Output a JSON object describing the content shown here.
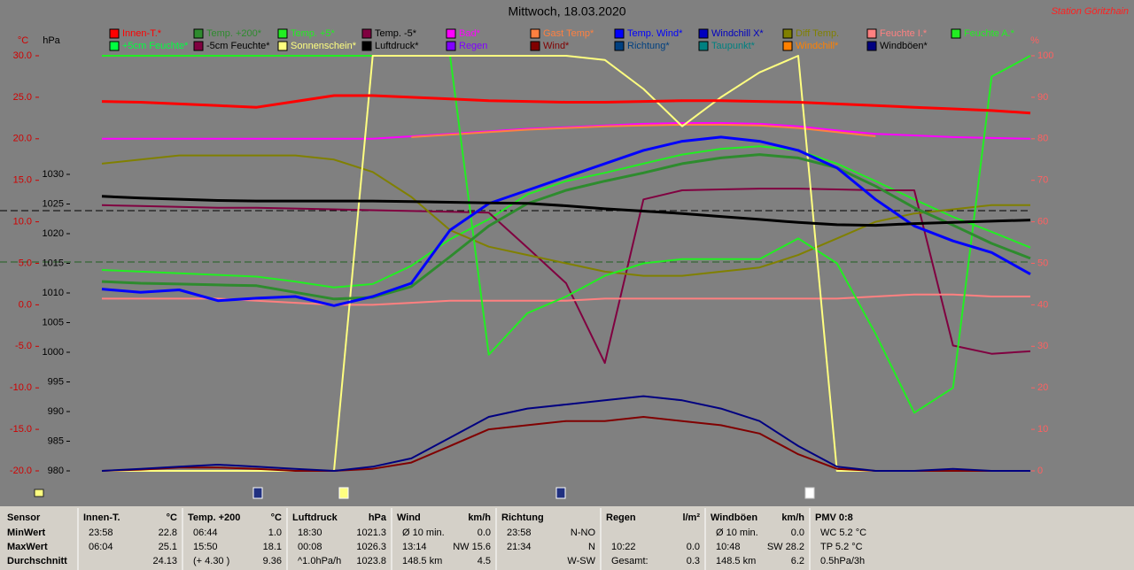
{
  "header": {
    "station": "Station Göritzhain"
  },
  "chart_data": {
    "type": "line",
    "title": "Mittwoch, 18.03.2020",
    "y_label": "°C",
    "y3_label": "hPa",
    "y2_label": "%",
    "x": [
      0,
      1,
      2,
      3,
      4,
      5,
      6,
      7,
      8,
      9,
      10,
      11,
      12,
      13,
      14,
      15,
      16,
      17,
      18,
      19,
      20,
      21,
      22,
      23,
      24
    ],
    "xlim": [
      0,
      24
    ],
    "ylim": [
      -20,
      30
    ],
    "yticks": [
      {
        "value": 30,
        "label": "30.0"
      },
      {
        "value": 25,
        "label": "25.0"
      },
      {
        "value": 20,
        "label": "20.0"
      },
      {
        "value": 15,
        "label": "15.0"
      },
      {
        "value": 10,
        "label": "10.0"
      },
      {
        "value": 5,
        "label": "5.0"
      },
      {
        "value": 0,
        "label": "0.0"
      },
      {
        "value": -5,
        "label": "-5.0"
      },
      {
        "value": -10,
        "label": "-10.0"
      },
      {
        "value": -15,
        "label": "-15.0"
      },
      {
        "value": -20,
        "label": "-20.0"
      }
    ],
    "y3lim": [
      980,
      1050
    ],
    "y3ticks": [
      1030,
      1025,
      1020,
      1015,
      1010,
      1005,
      1000,
      995,
      990,
      985,
      980
    ],
    "y2lim": [
      0,
      100
    ],
    "y2ticks": [
      100,
      90,
      80,
      70,
      60,
      50,
      40,
      30,
      20,
      10,
      0
    ],
    "series": [
      {
        "name": "Innen-T.*",
        "color": "#ff0000",
        "axis": "y",
        "values": [
          24.5,
          24.4,
          24.2,
          24.0,
          23.8,
          24.5,
          25.2,
          25.2,
          25.0,
          24.8,
          24.6,
          24.5,
          24.4,
          24.4,
          24.5,
          24.6,
          24.6,
          24.5,
          24.4,
          24.2,
          24.0,
          23.8,
          23.6,
          23.4,
          23.1
        ]
      },
      {
        "name": "Temp. +200*",
        "color": "#2e8b2e",
        "axis": "y",
        "values": [
          2.8,
          2.6,
          2.5,
          2.4,
          2.3,
          1.5,
          0.7,
          0.9,
          2.2,
          5.8,
          9.5,
          12.2,
          13.8,
          14.9,
          15.9,
          17.0,
          17.7,
          18.1,
          17.7,
          16.5,
          14.3,
          11.7,
          9.6,
          7.4,
          5.6
        ]
      },
      {
        "name": "Temp. +5*",
        "color": "#22ee22",
        "axis": "y",
        "values": [
          4.2,
          4.0,
          3.8,
          3.6,
          3.4,
          2.8,
          2.1,
          2.5,
          4.7,
          7.9,
          10.3,
          13.3,
          14.9,
          15.9,
          17.0,
          18.1,
          18.8,
          19.1,
          18.6,
          17.0,
          14.9,
          12.7,
          10.6,
          8.8,
          6.9
        ]
      },
      {
        "name": "Temp. -5*",
        "color": "#800040",
        "axis": "y",
        "values": [
          12.0,
          11.9,
          11.8,
          11.7,
          11.7,
          11.6,
          11.5,
          11.4,
          11.3,
          11.2,
          11.1,
          6.9,
          2.6,
          -7.0,
          12.7,
          13.8,
          13.9,
          14.0,
          14.0,
          13.9,
          13.8,
          13.8,
          -4.9,
          -5.9,
          -5.6
        ]
      },
      {
        "name": "Bad*",
        "color": "#ff00ff",
        "axis": "y",
        "values": [
          20.0,
          20.0,
          20.0,
          20.0,
          20.0,
          20.0,
          20.0,
          20.0,
          20.3,
          20.6,
          20.9,
          21.2,
          21.4,
          21.6,
          21.8,
          21.9,
          21.9,
          21.8,
          21.5,
          21.0,
          20.6,
          20.4,
          20.2,
          20.1,
          20.0
        ]
      },
      {
        "name": "Gast Temp*",
        "color": "#ff8040",
        "axis": "y",
        "values": [
          null,
          null,
          null,
          null,
          null,
          null,
          null,
          null,
          20.2,
          20.5,
          20.8,
          21.1,
          21.3,
          21.5,
          21.6,
          21.7,
          21.7,
          21.6,
          21.3,
          20.8,
          20.3,
          null,
          null,
          null,
          null
        ]
      },
      {
        "name": "Temp. Wind*",
        "color": "#0000ff",
        "axis": "y",
        "values": [
          1.9,
          1.5,
          1.8,
          0.5,
          0.8,
          1.0,
          -0.1,
          1.0,
          2.6,
          9.0,
          12.2,
          13.8,
          15.4,
          17.0,
          18.6,
          19.7,
          20.2,
          19.7,
          18.6,
          16.5,
          12.7,
          9.5,
          7.7,
          6.3,
          3.7
        ]
      },
      {
        "name": "Windchill X*",
        "color": "#0000c0",
        "axis": "y",
        "values": [
          null,
          null,
          null,
          null,
          null,
          null,
          null,
          null,
          null,
          null,
          null,
          null,
          null,
          null,
          null,
          null,
          null,
          null,
          null,
          null,
          null,
          null,
          null,
          null,
          null
        ]
      },
      {
        "name": "Diff Temp.",
        "color": "#808000",
        "axis": "y",
        "values": [
          17.0,
          17.5,
          18.0,
          18.0,
          18.0,
          18.0,
          17.5,
          16.0,
          13.0,
          9.0,
          7.0,
          6.0,
          5.0,
          4.0,
          3.5,
          3.5,
          4.0,
          4.5,
          6.0,
          8.0,
          10.0,
          11.0,
          11.5,
          12.0,
          12.0
        ]
      },
      {
        "name": "Feuchte I.*",
        "color": "#ff8080",
        "axis": "y2",
        "values": [
          41.5,
          41.5,
          41.5,
          41.5,
          41,
          40.5,
          40,
          40,
          40.5,
          41,
          41,
          41,
          41,
          41.5,
          41.5,
          41.5,
          41.5,
          41.5,
          41.5,
          41.5,
          42,
          42.5,
          42.5,
          42,
          42
        ]
      },
      {
        "name": "Feuchte A.*",
        "color": "#22ee22",
        "axis": "y2",
        "values": [
          100,
          100,
          100,
          100,
          100,
          100,
          100,
          100,
          100,
          100,
          28,
          38,
          42,
          47,
          50,
          51,
          51,
          51,
          56,
          50,
          33,
          14,
          20,
          95,
          100
        ]
      },
      {
        "name": "+5cm Feuchte*",
        "color": "#00ff40",
        "axis": "y2",
        "values": [
          null,
          null,
          null,
          null,
          null,
          null,
          null,
          null,
          null,
          null,
          null,
          null,
          null,
          null,
          null,
          null,
          null,
          null,
          null,
          null,
          null,
          null,
          null,
          null,
          null
        ]
      },
      {
        "name": "-5cm Feuchte*",
        "color": "#800040",
        "axis": "y2",
        "values": [
          null,
          null,
          null,
          null,
          null,
          null,
          null,
          null,
          null,
          null,
          null,
          null,
          null,
          null,
          null,
          null,
          null,
          null,
          null,
          null,
          null,
          null,
          null,
          null,
          null
        ]
      },
      {
        "name": "Sonnenschein*",
        "color": "#ffff80",
        "axis": "y2",
        "values": [
          0,
          0,
          0,
          0,
          0,
          0,
          0,
          100,
          100,
          100,
          100,
          100,
          100,
          99,
          92,
          83,
          90,
          96,
          100,
          0,
          0,
          0,
          0,
          0,
          0
        ]
      },
      {
        "name": "Luftdruck*",
        "color": "#000000",
        "axis": "y3",
        "values": [
          1026.3,
          1026.0,
          1025.8,
          1025.6,
          1025.5,
          1025.5,
          1025.5,
          1025.5,
          1025.4,
          1025.3,
          1025.2,
          1025.1,
          1024.7,
          1024.2,
          1023.8,
          1023.4,
          1022.9,
          1022.4,
          1021.9,
          1021.5,
          1021.4,
          1021.7,
          1021.9,
          1022.1,
          1022.3
        ]
      },
      {
        "name": "Regen",
        "color": "#8000ff",
        "axis": "y2",
        "values": [
          null,
          null,
          null,
          null,
          null,
          null,
          null,
          null,
          null,
          null,
          null,
          null,
          null,
          null,
          null,
          null,
          null,
          null,
          null,
          null,
          null,
          null,
          null,
          null,
          null
        ]
      },
      {
        "name": "Wind*",
        "color": "#800000",
        "axis": "y2",
        "values": [
          0,
          0.3,
          0.8,
          0.8,
          0.5,
          0,
          0,
          0.5,
          2,
          6,
          10,
          11,
          12,
          12,
          13,
          12,
          11,
          9,
          4,
          0.5,
          0,
          0,
          0,
          0,
          0
        ]
      },
      {
        "name": "Richtung*",
        "color": "#004080",
        "axis": "y2",
        "values": [
          null,
          null,
          null,
          null,
          null,
          null,
          null,
          null,
          null,
          null,
          null,
          null,
          null,
          null,
          null,
          null,
          null,
          null,
          null,
          null,
          null,
          null,
          null,
          null,
          null
        ]
      },
      {
        "name": "Taupunkt*",
        "color": "#008080",
        "axis": "y",
        "values": [
          null,
          null,
          null,
          null,
          null,
          null,
          null,
          null,
          null,
          null,
          null,
          null,
          null,
          null,
          null,
          null,
          null,
          null,
          null,
          null,
          null,
          null,
          null,
          null,
          null
        ]
      },
      {
        "name": "Windchill*",
        "color": "#ff8000",
        "axis": "y",
        "values": [
          null,
          null,
          null,
          null,
          null,
          null,
          null,
          null,
          null,
          null,
          null,
          null,
          null,
          null,
          null,
          null,
          null,
          null,
          null,
          null,
          null,
          null,
          null,
          null,
          null
        ]
      },
      {
        "name": "Windböen*",
        "color": "#000080",
        "axis": "y2",
        "values": [
          0,
          0.5,
          1,
          1.5,
          1,
          0.5,
          0,
          1,
          3,
          8,
          13,
          15,
          16,
          17,
          18,
          17,
          15,
          12,
          6,
          1,
          0,
          0,
          0.5,
          0,
          0
        ]
      }
    ]
  },
  "table": {
    "row_header": "Sensor",
    "row_labels": [
      "MinWert",
      "MaxWert",
      "Durchschnitt"
    ],
    "columns": [
      {
        "header": "Innen-T.",
        "unit": "°C",
        "cells": [
          [
            "23:58",
            "22.8"
          ],
          [
            "06:04",
            "25.1"
          ],
          [
            null,
            "24.13"
          ]
        ]
      },
      {
        "header": "Temp. +200",
        "unit": "°C",
        "cells": [
          [
            "06:44",
            "1.0"
          ],
          [
            "15:50",
            "18.1"
          ],
          [
            "(+ 4.30 )",
            "9.36"
          ]
        ]
      },
      {
        "header": "Luftdruck",
        "unit": "hPa",
        "cells": [
          [
            "18:30",
            "1021.3"
          ],
          [
            "00:08",
            "1026.3"
          ],
          [
            "^1.0hPa/h",
            "1023.8"
          ]
        ]
      },
      {
        "header": "Wind",
        "unit": "km/h",
        "cells": [
          [
            "Ø 10 min.",
            "0.0"
          ],
          [
            "13:14",
            "NW 15.6"
          ],
          [
            "148.5 km",
            "4.5"
          ]
        ]
      },
      {
        "header": "Richtung",
        "unit": null,
        "cells": [
          [
            "23:58",
            "N-NO"
          ],
          [
            "21:34",
            "N"
          ],
          [
            null,
            "W-SW"
          ]
        ]
      },
      {
        "header": "Regen",
        "unit": "l/m²",
        "cells": [
          [
            null,
            null
          ],
          [
            "10:22",
            "0.0"
          ],
          [
            "Gesamt:",
            "0.3"
          ]
        ]
      },
      {
        "header": "Windböen",
        "unit": "km/h",
        "cells": [
          [
            "Ø 10 min.",
            "0.0"
          ],
          [
            "10:48",
            "SW 28.2"
          ],
          [
            "148.5 km",
            "6.2"
          ]
        ]
      },
      {
        "header": "PMV 0:8",
        "unit": null,
        "cells": [
          [
            "WC 5.2 °C",
            null
          ],
          [
            "TP 5.2 °C",
            null
          ],
          [
            "0.5hPa/3h",
            null
          ]
        ]
      }
    ]
  }
}
